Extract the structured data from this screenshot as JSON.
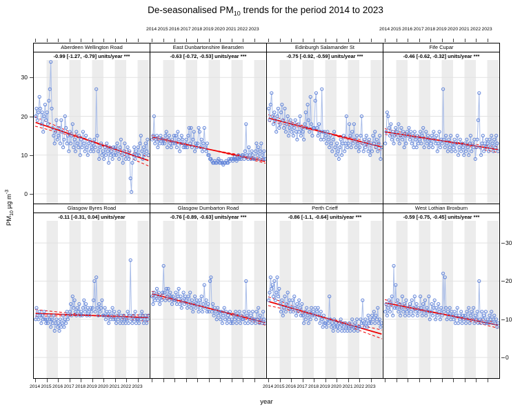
{
  "title": {
    "prefix": "De-seasonalised PM",
    "sub": "10",
    "suffix": " trends for the period 2014 to 2023"
  },
  "ylabel": {
    "prefix": "PM",
    "sub": "10",
    "mid": " µg m",
    "sup": "-3"
  },
  "xlabel": "year",
  "axes": {
    "x_tick_labels": [
      "2014",
      "2015",
      "2016",
      "2017",
      "2018",
      "2019",
      "2020",
      "2021",
      "2022",
      "2023"
    ],
    "x_tick_years": [
      2014,
      2015,
      2016,
      2017,
      2018,
      2019,
      2020,
      2021,
      2022,
      2023
    ],
    "y_tick_values": [
      0,
      10,
      20,
      30
    ],
    "y_tick_labels": [
      "0",
      "10",
      "20",
      "30"
    ],
    "xlim": [
      2013.88,
      2024.06
    ],
    "ylim_top": [
      -2.5,
      34.5
    ],
    "ylim_bottom": [
      -5.4,
      35.8
    ],
    "top_labelled_columns": [
      1,
      3
    ],
    "bottom_labelled_columns": [
      0,
      2
    ],
    "grid": true
  },
  "colors": {
    "marker": "#5f82d8",
    "series_line": "#a8bce8",
    "trend": "#ee0000",
    "annotation": "#007700",
    "band": "#ececec",
    "gridline": "#e2e2e2",
    "strip_border": "#000000"
  },
  "chart_data": {
    "type": "line",
    "x_start": 2014,
    "x_step_months": 1,
    "panels": [
      {
        "site": "Aberdeen Wellington Road",
        "annotation": "-0.99 [-1.27, -0.79] units/year ***",
        "slope": -0.99,
        "slope_ci": [
          -1.27,
          -0.79
        ],
        "units": "units/year",
        "significance": "***",
        "trend_mid_value": 13.5,
        "values": [
          20,
          22,
          19,
          21,
          25,
          22,
          18,
          21,
          16,
          20,
          23,
          19,
          21,
          18,
          24,
          27,
          34,
          22,
          17,
          15,
          13,
          16,
          19,
          14,
          15,
          17,
          13,
          19,
          16,
          12,
          14,
          20,
          17,
          13,
          15,
          11,
          16,
          13,
          15,
          18,
          12,
          14,
          11,
          16,
          13,
          12,
          15,
          10,
          14,
          12,
          16,
          13,
          11,
          15,
          12,
          10,
          13,
          14,
          11,
          12,
          13,
          11,
          14,
          12,
          27,
          15,
          11,
          9,
          12,
          13,
          10,
          11,
          9,
          12,
          10,
          13,
          11,
          8,
          12,
          10,
          11,
          9,
          12,
          10,
          12,
          10,
          13,
          11,
          9,
          12,
          14,
          10,
          8,
          11,
          13,
          9,
          10,
          12,
          9,
          11,
          4,
          0.5,
          8,
          10,
          12,
          9,
          11,
          10,
          12,
          10,
          13,
          15,
          11,
          9,
          12,
          10,
          13,
          11,
          14,
          10
        ]
      },
      {
        "site": "East Dunbartonshire Bearsden",
        "annotation": "-0.63 [-0.72, -0.53] units/year ***",
        "slope": -0.63,
        "slope_ci": [
          -0.72,
          -0.53
        ],
        "units": "units/year",
        "significance": "***",
        "trend_mid_value": 11.5,
        "values": [
          14,
          15,
          20,
          13,
          14,
          15,
          12,
          14,
          13,
          15,
          14,
          13,
          14,
          13,
          15,
          16,
          12,
          14,
          15,
          13,
          12,
          14,
          13,
          15,
          13,
          15,
          12,
          16,
          14,
          11,
          13,
          15,
          14,
          12,
          13,
          12,
          14,
          12,
          15,
          17,
          13,
          17,
          12,
          14,
          16,
          11,
          13,
          12,
          13,
          17,
          16,
          12,
          14,
          11,
          13,
          17,
          12,
          11,
          13,
          10,
          10,
          9,
          9,
          8.5,
          8,
          8,
          8.5,
          8,
          8,
          8.5,
          9,
          8,
          8,
          8.5,
          8,
          7.5,
          8,
          8,
          8.5,
          8,
          8,
          9,
          8.5,
          9,
          9,
          8.5,
          9,
          9.5,
          9,
          8.5,
          9,
          10,
          9,
          9.5,
          9,
          10,
          10,
          9,
          11,
          18,
          10,
          9,
          12,
          10,
          9,
          11,
          10,
          9,
          9,
          11,
          13,
          10,
          12,
          9,
          11,
          13,
          10,
          9,
          11,
          9
        ]
      },
      {
        "site": "Edinburgh Salamander St",
        "annotation": "-0.75 [-0.92, -0.59] units/year ***",
        "slope": -0.75,
        "slope_ci": [
          -0.92,
          -0.59
        ],
        "units": "units/year",
        "significance": "***",
        "trend_mid_value": 15.8,
        "values": [
          22,
          19,
          23,
          26,
          20,
          18,
          21,
          19,
          16,
          20,
          22,
          17,
          18,
          21,
          23,
          19,
          17,
          22,
          16,
          18,
          20,
          15,
          17,
          19,
          16,
          18,
          15,
          17,
          19,
          16,
          14,
          18,
          16,
          20,
          15,
          17,
          16,
          14,
          18,
          21,
          17,
          23,
          19,
          16,
          25,
          18,
          15,
          17,
          17,
          24,
          26,
          17,
          15,
          18,
          16,
          14,
          27,
          16,
          14,
          16,
          15,
          13,
          16,
          14,
          12,
          15,
          13,
          11,
          14,
          16,
          12,
          10,
          13,
          11,
          9,
          12,
          14,
          10,
          13,
          15,
          11,
          13,
          20,
          12,
          13,
          18,
          15,
          12,
          16,
          13,
          18,
          14,
          12,
          15,
          13,
          11,
          12,
          15,
          20,
          13,
          11,
          14,
          12,
          15,
          13,
          11,
          14,
          10,
          13,
          11,
          15,
          13,
          16,
          12,
          14,
          11,
          13,
          15,
          9,
          12
        ]
      },
      {
        "site": "Fife Cupar",
        "annotation": "-0.46 [-0.62, -0.32] units/year ***",
        "slope": -0.46,
        "slope_ci": [
          -0.62,
          -0.32
        ],
        "units": "units/year",
        "significance": "***",
        "trend_mid_value": 13.7,
        "values": [
          13,
          16,
          21,
          20,
          17,
          15,
          18,
          14,
          16,
          13,
          15,
          17,
          16,
          14,
          18,
          13,
          15,
          17,
          14,
          16,
          12,
          15,
          13,
          16,
          15,
          17,
          14,
          16,
          13,
          15,
          12,
          16,
          14,
          12,
          15,
          13,
          14,
          16,
          13,
          15,
          17,
          12,
          14,
          16,
          13,
          15,
          12,
          14,
          13,
          15,
          12,
          16,
          14,
          13,
          15,
          11,
          13,
          16,
          12,
          14,
          13,
          27,
          14,
          12,
          15,
          13,
          11,
          14,
          12,
          15,
          11,
          13,
          12,
          14,
          11,
          13,
          15,
          10,
          12,
          14,
          11,
          13,
          12,
          10,
          13,
          11,
          14,
          12,
          10,
          13,
          15,
          11,
          13,
          12,
          14,
          9,
          12,
          14,
          19,
          26,
          12,
          10,
          13,
          15,
          11,
          13,
          12,
          14,
          13,
          11,
          14,
          12,
          15,
          13,
          11,
          14,
          12,
          15,
          13,
          11
        ]
      },
      {
        "site": "Glasgow Byres Road",
        "annotation": "-0.11 [-0.31, 0.04] units/year",
        "slope": -0.11,
        "slope_ci": [
          -0.31,
          0.04
        ],
        "units": "units/year",
        "significance": "",
        "trend_mid_value": 11.0,
        "values": [
          10,
          13,
          11,
          10,
          12,
          11,
          9,
          11,
          10,
          12,
          10,
          9,
          10,
          9,
          11,
          10,
          8,
          10,
          9,
          11,
          7,
          9,
          10,
          8,
          9,
          7,
          10,
          8,
          9,
          11,
          8,
          10,
          9,
          12,
          10,
          11,
          12,
          14,
          11,
          16,
          13,
          15,
          12,
          11,
          13,
          12,
          14,
          11,
          12,
          11,
          13,
          15,
          12,
          14,
          11,
          13,
          12,
          11,
          13,
          12,
          13,
          15,
          20,
          12,
          21,
          13,
          11,
          14,
          12,
          13,
          15,
          11,
          11,
          13,
          10,
          12,
          11,
          9,
          12,
          10,
          11,
          13,
          10,
          12,
          10,
          9,
          11,
          10,
          12,
          9,
          11,
          10,
          9,
          11,
          10,
          9,
          10,
          12,
          9,
          11,
          25.5,
          10,
          9,
          11,
          10,
          12,
          9,
          10,
          10,
          9,
          11,
          10,
          12,
          11,
          9,
          10,
          11,
          9,
          10,
          11
        ]
      },
      {
        "site": "Glasgow Dumbarton Road",
        "annotation": "-0.76 [-0.89, -0.63] units/year ***",
        "slope": -0.76,
        "slope_ci": [
          -0.89,
          -0.63
        ],
        "units": "units/year",
        "significance": "***",
        "trend_mid_value": 12.9,
        "values": [
          16,
          14,
          17,
          15,
          16,
          18,
          15,
          17,
          14,
          16,
          15,
          17,
          24,
          17,
          15,
          18,
          16,
          18,
          15,
          17,
          16,
          14,
          16,
          15,
          15,
          17,
          14,
          16,
          18,
          14,
          16,
          13,
          15,
          17,
          14,
          16,
          15,
          13,
          16,
          14,
          17,
          13,
          15,
          12,
          14,
          16,
          13,
          15,
          14,
          12,
          15,
          13,
          16,
          12,
          14,
          19,
          13,
          15,
          12,
          14,
          12,
          20,
          21,
          12,
          14,
          11,
          13,
          12,
          10,
          13,
          11,
          12,
          10,
          12,
          9,
          11,
          13,
          10,
          12,
          9,
          11,
          10,
          12,
          9,
          10,
          9,
          11,
          10,
          12,
          9,
          11,
          10,
          12,
          9,
          11,
          10,
          10,
          12,
          9,
          20,
          11,
          9,
          12,
          10,
          11,
          9,
          12,
          10,
          10,
          9,
          12,
          10,
          13,
          9,
          11,
          10,
          9,
          12,
          10,
          9
        ]
      },
      {
        "site": "Perth Crieff",
        "annotation": "-0.86 [-1.1, -0.64] units/year ***",
        "slope": -0.86,
        "slope_ci": [
          -1.1,
          -0.64
        ],
        "units": "units/year",
        "significance": "***",
        "trend_mid_value": 10.4,
        "values": [
          15,
          17,
          21,
          18,
          19,
          16,
          20,
          15,
          17,
          21,
          16,
          18,
          14,
          12,
          15,
          11,
          13,
          16,
          12,
          14,
          17,
          13,
          15,
          12,
          13,
          15,
          12,
          16,
          13,
          11,
          14,
          12,
          15,
          13,
          11,
          14,
          11,
          9,
          12,
          10,
          13,
          11,
          9,
          12,
          10,
          13,
          11,
          12,
          11,
          13,
          10,
          12,
          13,
          11,
          9,
          12,
          10,
          8,
          11,
          9,
          9,
          8,
          10,
          9,
          16,
          10,
          8,
          9,
          7,
          10,
          8,
          9,
          8,
          7,
          9,
          8,
          10,
          7,
          9,
          8,
          7,
          9,
          8,
          7,
          8,
          9,
          7,
          8,
          10,
          8,
          7,
          9,
          8,
          10,
          7,
          8,
          8,
          10,
          9,
          15,
          9,
          8,
          10,
          9,
          8,
          11,
          9,
          10,
          9,
          11,
          10,
          12,
          9,
          11,
          10,
          13,
          9,
          10,
          8,
          9
        ]
      },
      {
        "site": "West Lothian Broxburn",
        "annotation": "-0.59 [-0.75, -0.45] units/year ***",
        "slope": -0.59,
        "slope_ci": [
          -0.75,
          -0.45
        ],
        "units": "units/year",
        "significance": "***",
        "trend_mid_value": 11.4,
        "values": [
          12,
          14,
          11,
          13,
          15,
          12,
          14,
          16,
          11,
          24,
          13,
          19,
          13,
          15,
          12,
          14,
          11,
          13,
          16,
          12,
          14,
          11,
          15,
          12,
          13,
          11,
          14,
          12,
          15,
          11,
          13,
          16,
          12,
          14,
          11,
          13,
          12,
          16,
          13,
          11,
          14,
          12,
          15,
          11,
          13,
          12,
          16,
          10,
          12,
          14,
          11,
          13,
          15,
          10,
          13,
          11,
          14,
          12,
          10,
          13,
          11,
          22,
          12,
          21,
          13,
          10,
          12,
          11,
          13,
          10,
          12,
          11,
          10,
          12,
          9,
          11,
          13,
          9,
          11,
          10,
          12,
          9,
          11,
          10,
          11,
          9,
          12,
          10,
          13,
          9,
          11,
          12,
          10,
          13,
          9,
          11,
          10,
          12,
          9,
          20,
          10,
          9,
          12,
          10,
          11,
          9,
          12,
          9,
          10,
          9,
          11,
          10,
          12,
          9,
          10,
          11,
          9,
          10,
          8,
          9
        ]
      }
    ]
  }
}
